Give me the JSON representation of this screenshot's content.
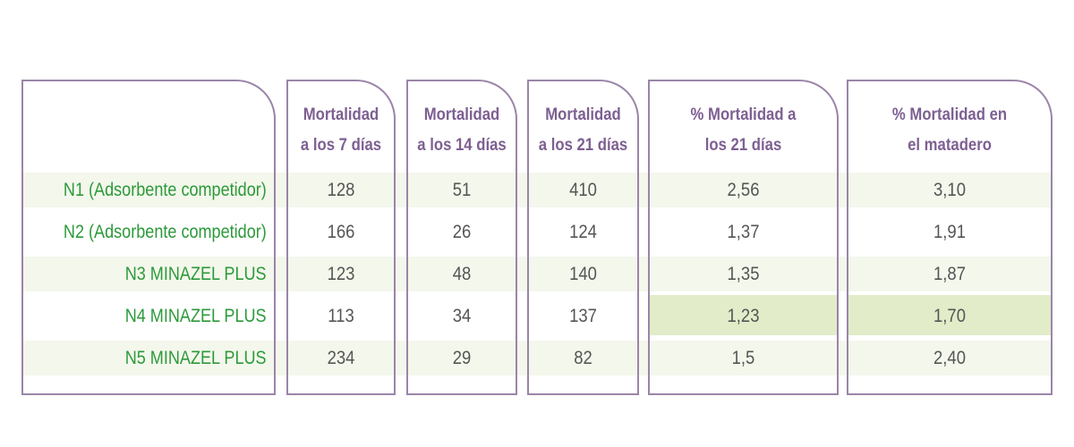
{
  "chart_data": {
    "type": "table",
    "columns": [
      "Mortalidad a los 7 días",
      "Mortalidad a los 14 días",
      "Mortalidad a los 21 días",
      "% Mortalidad a los 21 días",
      "% Mortalidad en el matadero"
    ],
    "header_lines": [
      [
        "Mortalidad",
        "a los 7 días"
      ],
      [
        "Mortalidad",
        "a los 14 días"
      ],
      [
        "Mortalidad",
        "a los 21 días"
      ],
      [
        "% Mortalidad a",
        "los 21 días"
      ],
      [
        "% Mortalidad en",
        "el matadero"
      ]
    ],
    "rows": [
      {
        "label": "N1 (Adsorbente competidor)",
        "values": [
          "128",
          "51",
          "410",
          "2,56",
          "3,10"
        ]
      },
      {
        "label": "N2 (Adsorbente competidor)",
        "values": [
          "166",
          "26",
          "124",
          "1,37",
          "1,91"
        ]
      },
      {
        "label": "N3 MINAZEL PLUS",
        "values": [
          "123",
          "48",
          "140",
          "1,35",
          "1,87"
        ]
      },
      {
        "label": "N4 MINAZEL PLUS",
        "values": [
          "113",
          "34",
          "137",
          "1,23",
          "1,70"
        ]
      },
      {
        "label": "N5 MINAZEL PLUS",
        "values": [
          "234",
          "29",
          "82",
          "1,5",
          "2,40"
        ]
      }
    ],
    "highlighted_row": 3,
    "highlighted_columns": [
      3,
      4
    ]
  },
  "colors": {
    "border": "#9a85a8",
    "header_text": "#7d5f92",
    "row_label_text": "#2c9a3a",
    "value_text": "#555555",
    "band_light": "#f4f7ec",
    "band_highlight": "#e2ecc9"
  }
}
